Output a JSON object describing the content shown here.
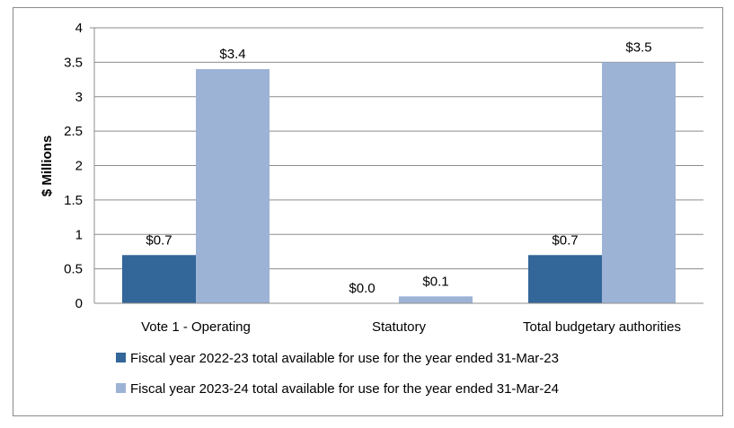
{
  "chart_data": {
    "type": "bar",
    "title": "",
    "xlabel": "",
    "ylabel": "$ Millions",
    "ylim": [
      0,
      4
    ],
    "yticks": [
      0,
      0.5,
      1,
      1.5,
      2,
      2.5,
      3,
      3.5,
      4
    ],
    "ytick_labels": [
      "0",
      "0.5",
      "1",
      "1.5",
      "2",
      "2.5",
      "3",
      "3.5",
      "4"
    ],
    "categories": [
      "Vote 1 - Operating",
      "Statutory",
      "Total budgetary authorities"
    ],
    "series": [
      {
        "name": "Fiscal year 2022-23 total available for use for the year ended 31-Mar-23",
        "values": [
          0.7,
          0.0,
          0.7
        ],
        "labels": [
          "$0.7",
          "$0.0",
          "$0.7"
        ],
        "color": "#336699"
      },
      {
        "name": "Fiscal year 2023-24 total available for use for the year ended 31-Mar-24",
        "values": [
          3.4,
          0.1,
          3.5
        ],
        "labels": [
          "$3.4",
          "$0.1",
          "$3.5"
        ],
        "color": "#9DB3D6"
      }
    ],
    "grid": true,
    "legend_position": "bottom"
  }
}
